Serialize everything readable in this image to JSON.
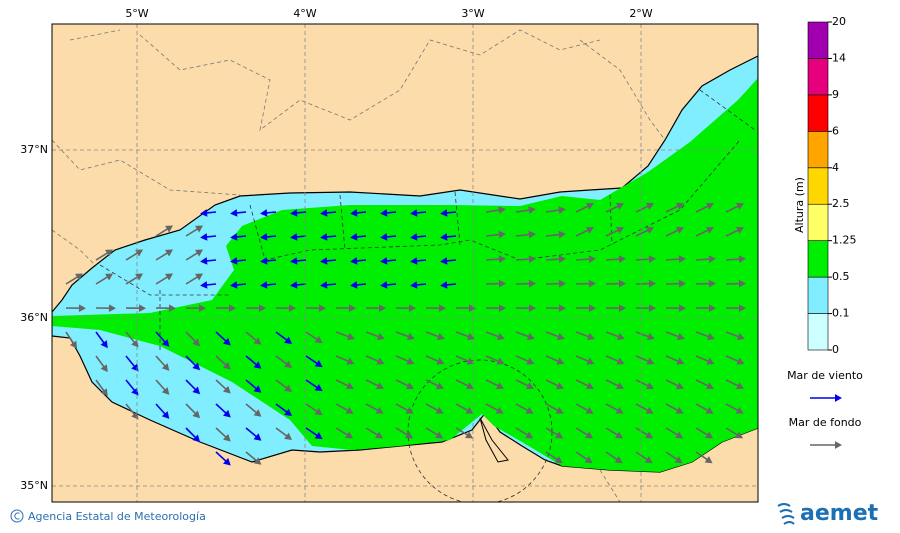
{
  "map": {
    "lon_labels": [
      "5°W",
      "4°W",
      "3°W",
      "2°W"
    ],
    "lat_labels": [
      "37°N",
      "36°N",
      "35°N"
    ]
  },
  "colorbar": {
    "title": "Altura (m)",
    "levels": [
      0,
      0.1,
      0.5,
      1.25,
      2.5,
      4,
      6,
      9,
      14,
      20
    ],
    "colors": [
      "#ccffff",
      "#80eeff",
      "#00ee00",
      "#ffff66",
      "#ffd700",
      "#ffa500",
      "#ff0000",
      "#e6007e",
      "#a000b0"
    ]
  },
  "legend": [
    {
      "label": "Mar de viento",
      "color": "#0000ee"
    },
    {
      "label": "Mar de fondo",
      "color": "#666666"
    }
  ],
  "footer": {
    "credit": "Agencia Estatal de Meteorología",
    "logo": "aemet"
  }
}
